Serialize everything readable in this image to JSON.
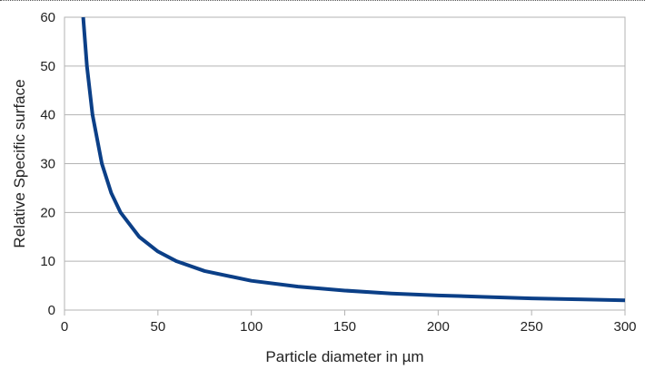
{
  "chart_data": {
    "type": "line",
    "title": "",
    "xlabel": "Particle diameter in µm",
    "ylabel": "Relative Specific surface",
    "xlim": [
      0,
      300
    ],
    "ylim": [
      0,
      60
    ],
    "x_ticks": [
      0,
      50,
      100,
      150,
      200,
      250,
      300
    ],
    "y_ticks": [
      0,
      10,
      20,
      30,
      40,
      50,
      60
    ],
    "grid": "horizontal",
    "legend": "none",
    "series": [
      {
        "color": "#0b3f87",
        "x": [
          10,
          12,
          15,
          20,
          25,
          30,
          40,
          50,
          60,
          75,
          100,
          125,
          150,
          175,
          200,
          225,
          250,
          275,
          300
        ],
        "y": [
          60,
          50,
          40,
          30,
          24,
          20,
          15,
          12,
          10,
          8,
          6,
          4.8,
          4,
          3.4,
          3,
          2.7,
          2.4,
          2.2,
          2
        ]
      }
    ]
  }
}
